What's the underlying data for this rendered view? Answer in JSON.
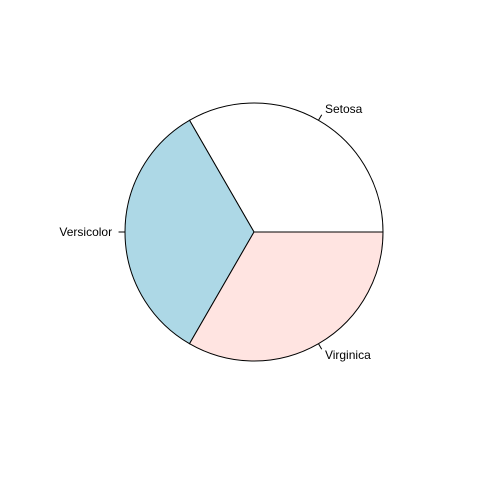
{
  "chart_data": {
    "type": "pie",
    "title": "",
    "slices": [
      {
        "label": "Setosa",
        "value": 50,
        "color": "#ffffff"
      },
      {
        "label": "Versicolor",
        "value": 50,
        "color": "#add8e6"
      },
      {
        "label": "Virginica",
        "value": 50,
        "color": "#ffe4e1"
      }
    ],
    "start_angle_deg": 0,
    "direction": "counterclockwise",
    "border_color": "#000000",
    "label_placement": "outside with leader ticks"
  }
}
